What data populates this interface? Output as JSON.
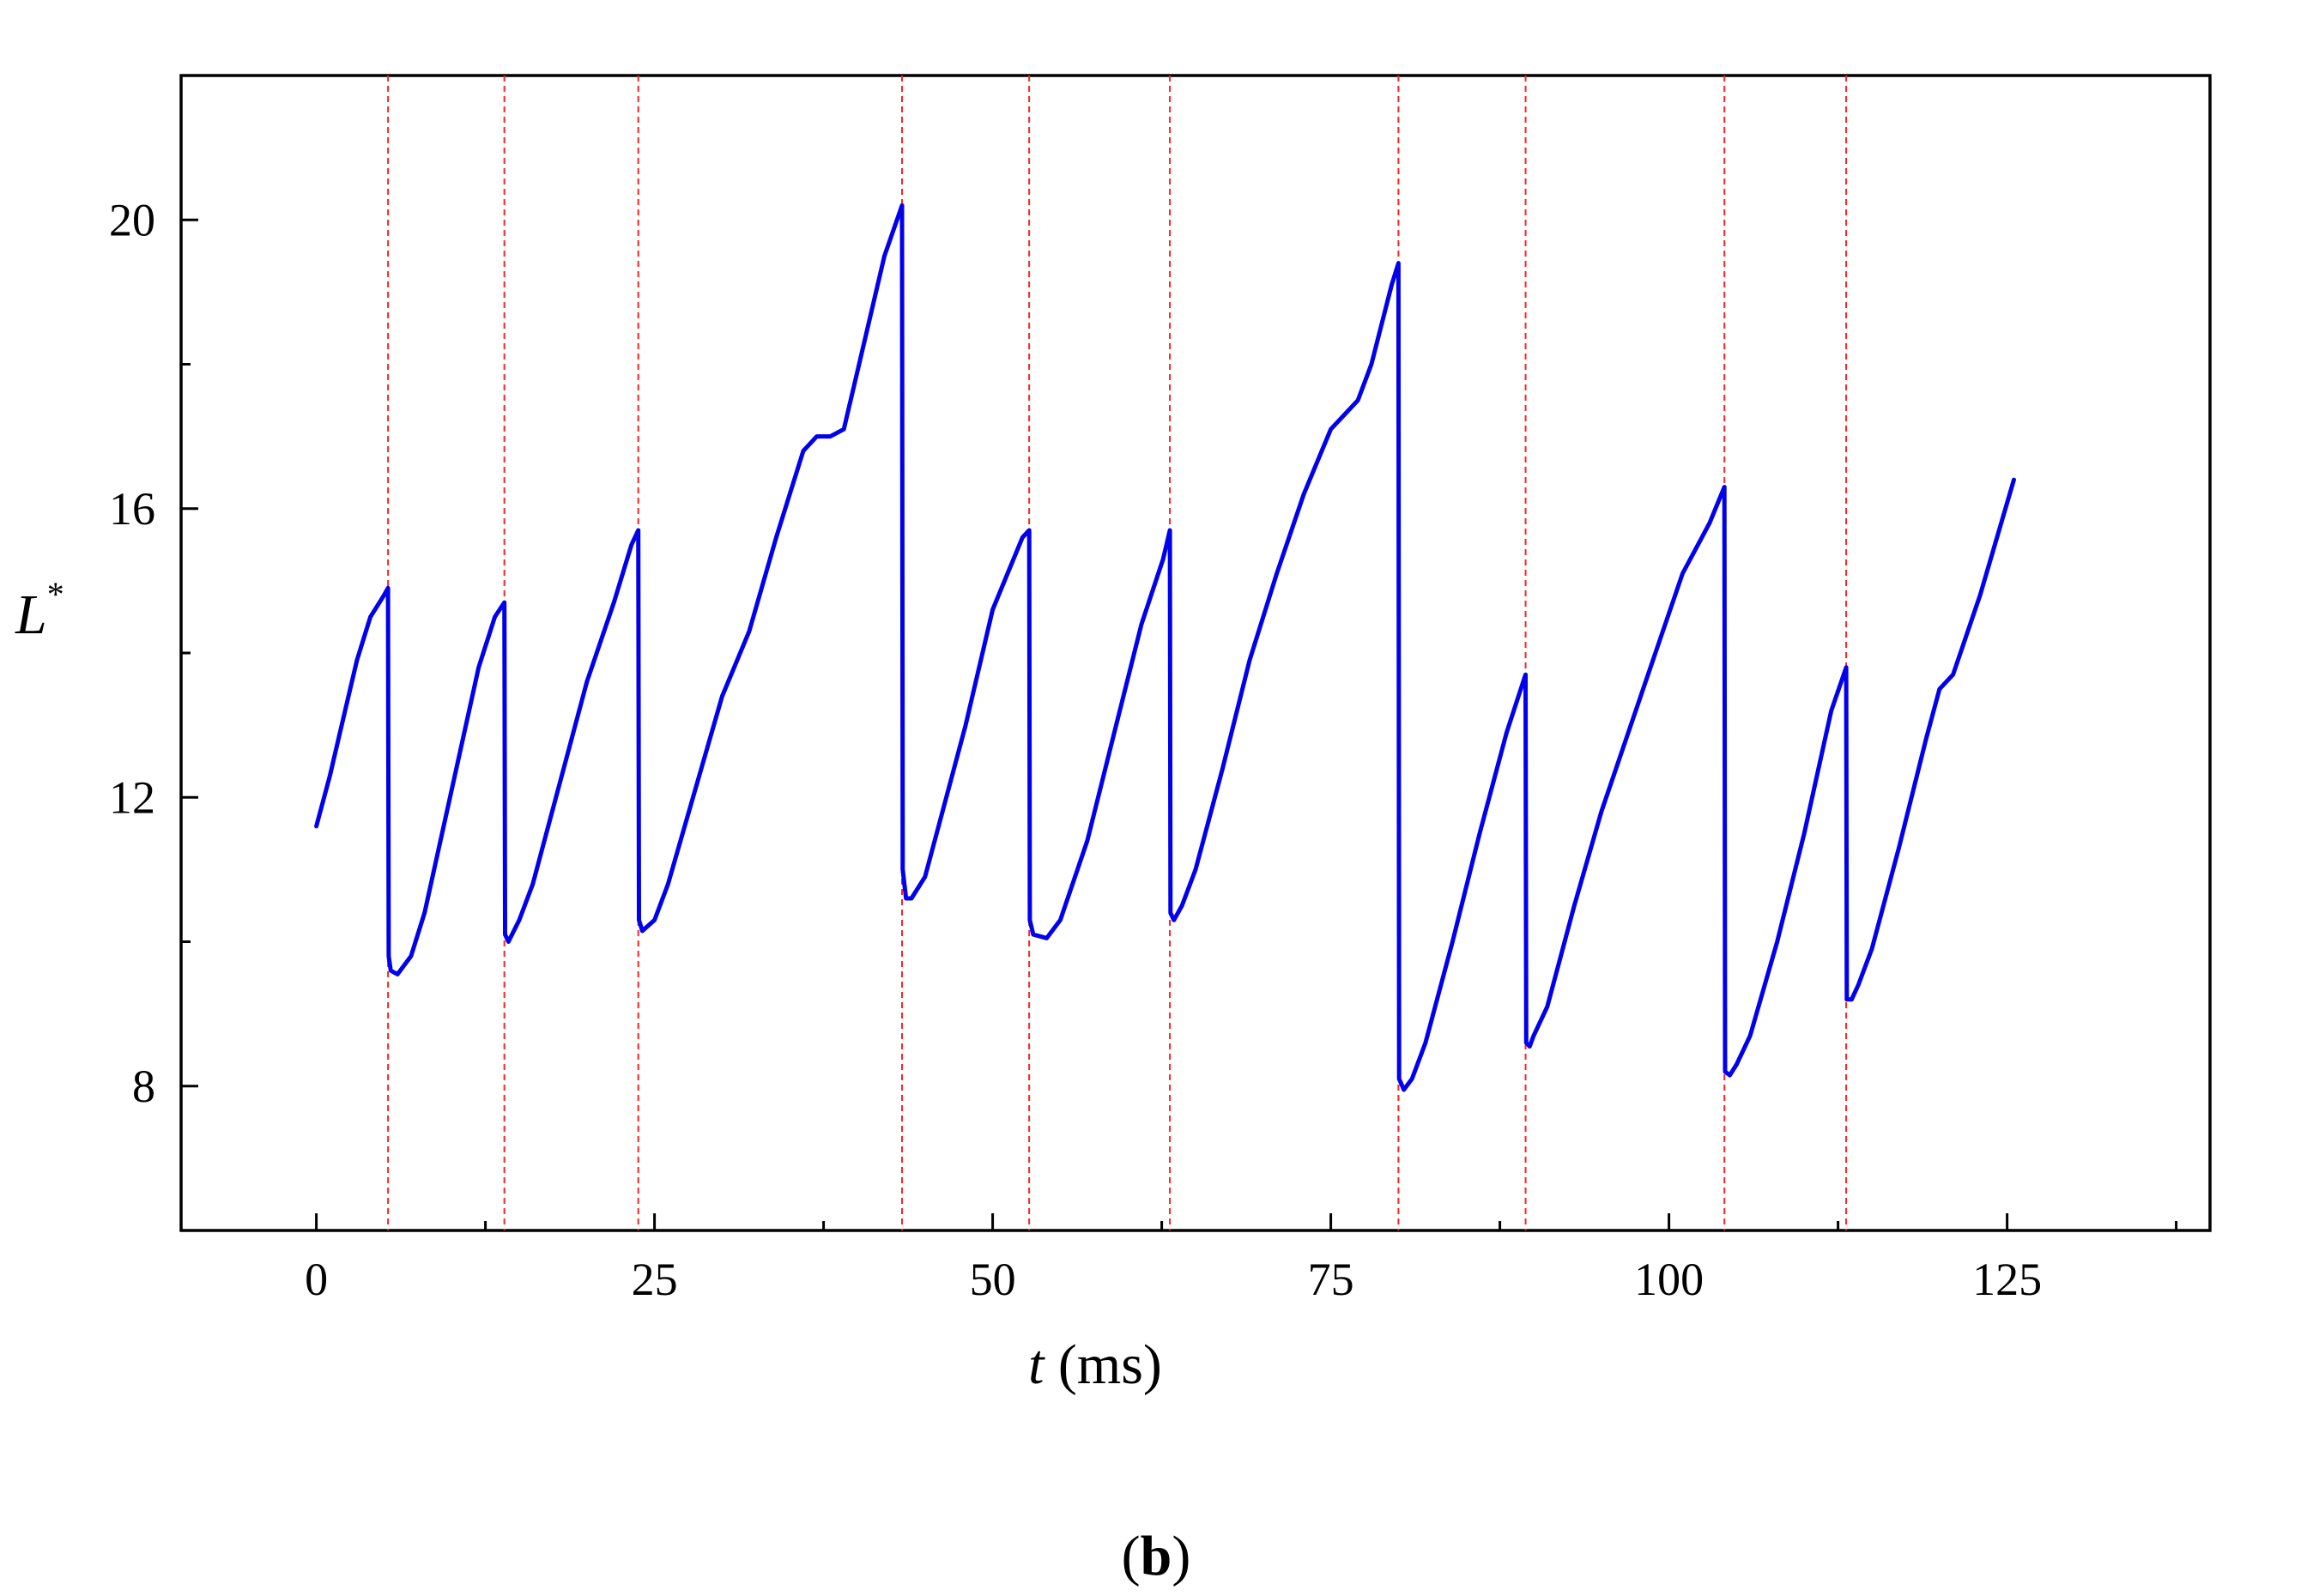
{
  "chart_data": {
    "type": "line",
    "xlabel": {
      "symbol": "t",
      "unit": " (ms)"
    },
    "ylabel": {
      "symbol": "L",
      "superscript": "*"
    },
    "panel_label": {
      "open": "(",
      "letter": "b",
      "close": ")"
    },
    "xlim": [
      -10,
      140
    ],
    "ylim": [
      6,
      22
    ],
    "x_ticks": [
      0,
      25,
      50,
      75,
      100,
      125
    ],
    "x_tick_labels": [
      "0",
      "25",
      "50",
      "75",
      "100",
      "125"
    ],
    "x_minor_ticks": [
      12.5,
      37.5,
      62.5,
      87.5,
      112.5,
      137.5
    ],
    "y_ticks": [
      8,
      12,
      16,
      20
    ],
    "y_tick_labels": [
      "8",
      "12",
      "16",
      "20"
    ],
    "y_minor_ticks": [
      10,
      14,
      18
    ],
    "grid": false,
    "legend": "none",
    "colors": {
      "series": "#0000ee",
      "markers": "#ff2222",
      "axes": "#000000"
    },
    "vertical_markers": [
      5.3,
      13.9,
      23.8,
      43.3,
      52.7,
      63.1,
      80.0,
      89.4,
      104.1,
      113.1
    ],
    "series": [
      {
        "x": [
          0,
          1,
          2,
          3,
          4,
          5,
          5.3,
          5.35,
          5.5,
          6,
          7,
          8,
          10,
          12,
          13.2,
          13.9,
          13.95,
          14.2,
          15,
          16,
          18,
          20,
          22,
          23.3,
          23.8,
          23.85,
          24.1,
          25,
          26,
          28,
          30,
          32,
          34,
          36,
          37,
          38,
          39,
          40,
          42,
          43.3,
          43.35,
          43.6,
          44,
          45,
          46,
          48,
          50,
          52.2,
          52.7,
          52.75,
          53,
          54,
          55,
          57,
          59,
          61,
          62.6,
          63.1,
          63.15,
          63.4,
          64,
          65,
          67,
          69,
          71,
          73,
          75,
          76,
          77,
          78,
          79.5,
          80,
          80.05,
          80.4,
          81,
          82,
          84,
          86,
          88,
          89.4,
          89.45,
          89.7,
          90,
          91,
          93,
          95,
          97,
          99,
          101,
          103,
          104.1,
          104.15,
          104.5,
          105,
          106,
          108,
          110,
          112,
          113.1,
          113.15,
          113.5,
          114,
          115,
          117,
          119,
          120,
          121,
          123,
          125.5
        ],
        "y": [
          11.6,
          12.3,
          13.1,
          13.9,
          14.5,
          14.8,
          14.9,
          9.8,
          9.6,
          9.55,
          9.8,
          10.4,
          12.1,
          13.8,
          14.5,
          14.7,
          10.1,
          10.0,
          10.3,
          10.8,
          12.2,
          13.6,
          14.7,
          15.5,
          15.7,
          10.3,
          10.15,
          10.3,
          10.8,
          12.1,
          13.4,
          14.3,
          15.6,
          16.8,
          17.0,
          17.0,
          17.1,
          17.9,
          19.5,
          20.2,
          11.0,
          10.6,
          10.6,
          10.9,
          11.6,
          13.0,
          14.6,
          15.6,
          15.7,
          10.3,
          10.1,
          10.05,
          10.3,
          11.4,
          12.9,
          14.4,
          15.3,
          15.7,
          10.4,
          10.3,
          10.5,
          11.0,
          12.4,
          13.9,
          15.1,
          16.2,
          17.1,
          17.3,
          17.5,
          18.0,
          19.1,
          19.4,
          8.1,
          7.95,
          8.1,
          8.6,
          10.0,
          11.5,
          12.9,
          13.7,
          8.6,
          8.55,
          8.7,
          9.1,
          10.5,
          11.8,
          12.9,
          14.0,
          15.1,
          15.8,
          16.3,
          8.2,
          8.15,
          8.3,
          8.7,
          10.0,
          11.5,
          13.2,
          13.8,
          9.2,
          9.2,
          9.4,
          9.9,
          11.3,
          12.8,
          13.5,
          13.7,
          14.8,
          16.4
        ]
      }
    ]
  }
}
